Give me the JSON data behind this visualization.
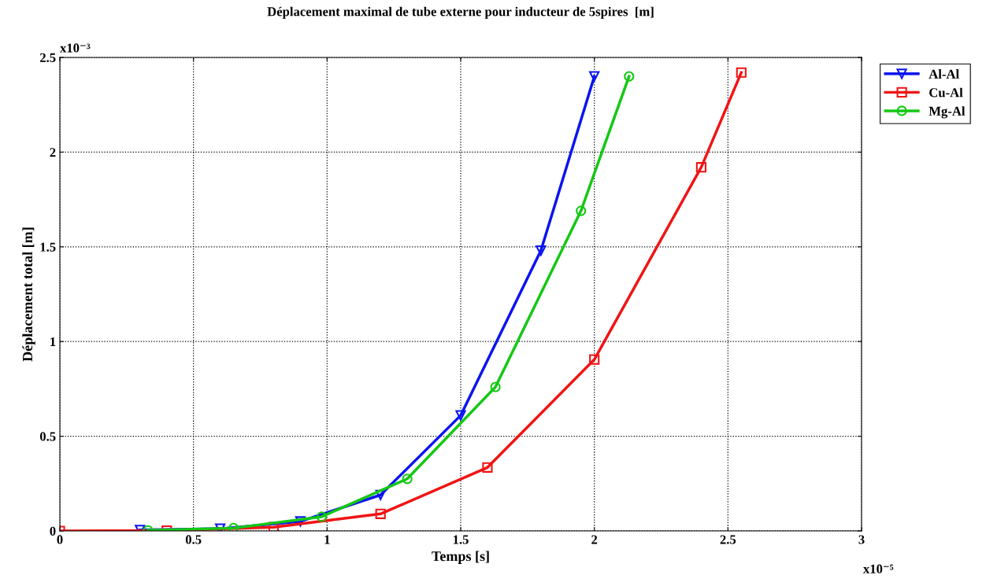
{
  "chart_data": {
    "type": "line",
    "title": "Déplacement maximal de tube externe pour inducteur de 5spires  [m]",
    "xlabel": "Temps [s]",
    "ylabel": "Déplacement total [m]",
    "xlim": [
      0,
      3
    ],
    "xticks": [
      0,
      0.5,
      1,
      1.5,
      2,
      2.5,
      3
    ],
    "ylim": [
      0,
      2.5
    ],
    "yticks": [
      0,
      0.5,
      1,
      1.5,
      2,
      2.5
    ],
    "grid": true,
    "legend": "top right",
    "annotations": [
      "x10⁻³",
      "x10⁻⁵"
    ],
    "series": [
      {
        "name": "Al-Al",
        "color": "#0a14f0",
        "marker": "triangle",
        "x": [
          0.3,
          0.6,
          0.9,
          1.2,
          1.5,
          1.8,
          2.0
        ],
        "values": [
          0.005,
          0.012,
          0.05,
          0.19,
          0.61,
          1.48,
          2.4
        ]
      },
      {
        "name": "Cu-Al",
        "color": "#f01414",
        "marker": "square",
        "x": [
          0,
          0.4,
          0.8,
          1.2,
          1.6,
          2.0,
          2.4,
          2.55
        ],
        "values": [
          0,
          0.002,
          0.02,
          0.09,
          0.335,
          0.905,
          1.92,
          2.42
        ]
      },
      {
        "name": "Mg-Al",
        "color": "#14c814",
        "marker": "circle",
        "x": [
          0.33,
          0.65,
          0.98,
          1.3,
          1.63,
          1.95,
          2.13
        ],
        "values": [
          0.003,
          0.015,
          0.075,
          0.275,
          0.76,
          1.69,
          2.4
        ]
      }
    ]
  }
}
